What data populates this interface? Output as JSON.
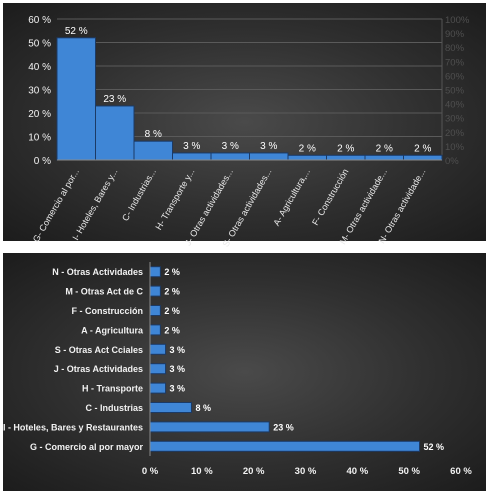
{
  "chart_data": [
    {
      "type": "bar",
      "categories": [
        "G- Comercio al por...",
        "I- Hoteles, Bares y...",
        "C- Industrias...",
        "H- Transporte y...",
        "J- Otras actividades...",
        "S- Otras actividades...",
        "A- Agricultura,...",
        "F- Construcción",
        "M- Otras actividade...",
        "N- Otras actividade..."
      ],
      "values": [
        52,
        23,
        8,
        3,
        3,
        3,
        2,
        2,
        2,
        2
      ],
      "value_labels": [
        "52 %",
        "23 %",
        "8 %",
        "3 %",
        "3 %",
        "3 %",
        "2 %",
        "2 %",
        "2 %",
        "2 %"
      ],
      "ylim": [
        0,
        60
      ],
      "yticks": [
        "0 %",
        "10 %",
        "20 %",
        "30 %",
        "40 %",
        "50 %",
        "60 %"
      ],
      "y2lim": [
        0,
        100
      ],
      "y2ticks": [
        "0%",
        "10%",
        "20%",
        "30%",
        "40%",
        "50%",
        "60%",
        "70%",
        "80%",
        "90%",
        "100%"
      ],
      "grid": true,
      "bar_color": "#3f86d6",
      "background": "#333333"
    },
    {
      "type": "bar",
      "orientation": "horizontal",
      "categories": [
        "N - Otras Actividades",
        "M - Otras Act de C",
        "F - Construcción",
        "A - Agricultura",
        "S - Otras Act Cciales",
        "J - Otras Actividades",
        "H - Transporte",
        "C - Industrias",
        "I - Hoteles, Bares y Restaurantes",
        "G - Comercio al por mayor"
      ],
      "values": [
        2,
        2,
        2,
        2,
        3,
        3,
        3,
        8,
        23,
        52
      ],
      "value_labels": [
        "2 %",
        "2 %",
        "2 %",
        "2 %",
        "3 %",
        "3 %",
        "3 %",
        "8 %",
        "23 %",
        "52 %"
      ],
      "xlim": [
        0,
        60
      ],
      "xticks": [
        "0 %",
        "10 %",
        "20 %",
        "30 %",
        "40 %",
        "50 %",
        "60 %"
      ],
      "grid": false,
      "bar_color": "#3f86d6",
      "background": "#333333"
    }
  ]
}
